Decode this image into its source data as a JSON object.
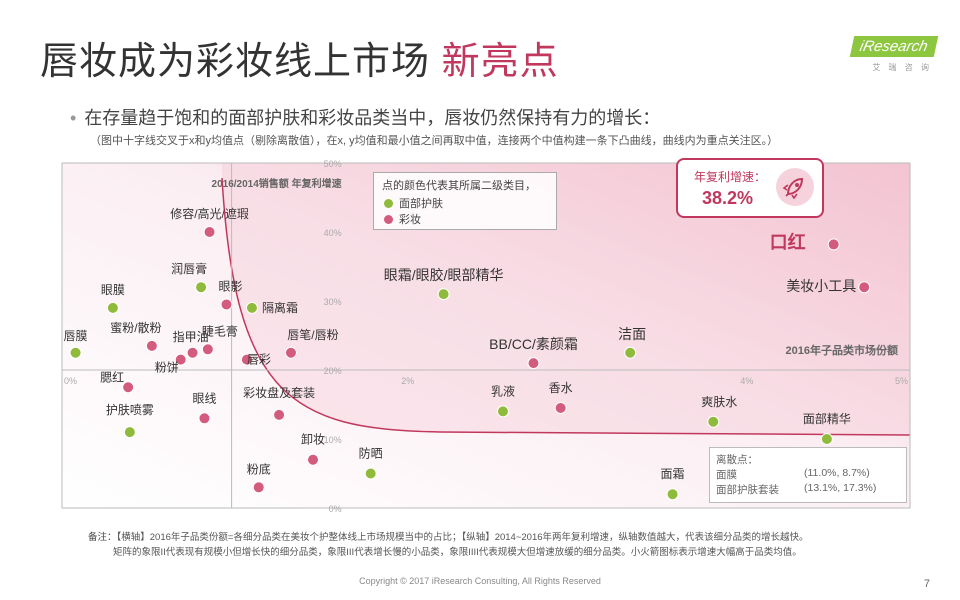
{
  "header": {
    "title_main": "唇妆成为彩妆线上市场",
    "title_highlight": "新亮点",
    "logo_text": "iResearch",
    "logo_sub": "艾 瑞 咨 询"
  },
  "bullet": {
    "text": "在存量趋于饱和的面部护肤和彩妆品类当中，唇妆仍然保持有力的增长：",
    "note": "（图中十字线交叉于x和y均值点（剔除离散值），在x, y均值和最小值之间再取中值，连接两个中值构建一条下凸曲线，曲线内为重点关注区。）"
  },
  "callout": {
    "label": "年复利增速：",
    "value": "38.2%"
  },
  "legend": {
    "title": "点的颜色代表其所属二级类目，",
    "items": [
      {
        "label": "面部护肤",
        "color": "#8fba3b"
      },
      {
        "label": "彩妆",
        "color": "#d35b7e"
      }
    ]
  },
  "outliers": {
    "title": "离散点：",
    "rows": [
      {
        "name": "面膜",
        "value": "(11.0%,   8.7%)"
      },
      {
        "name": "面部护肤套装",
        "value": "(13.1%, 17.3%)"
      }
    ]
  },
  "chart_data": {
    "type": "scatter",
    "xlabel": "2016年子品类市场份额",
    "ylabel": "2016/2014销售额 年复利增速",
    "xlim": [
      0,
      5
    ],
    "ylim": [
      0,
      50
    ],
    "x_ticks": [
      "0%",
      "2%",
      "4%",
      "5%"
    ],
    "y_ticks": [
      "0%",
      "10%",
      "20%",
      "30%",
      "40%",
      "50%"
    ],
    "x_mean": 1.0,
    "y_mean": 20,
    "colors": {
      "skincare": "#8fba3b",
      "makeup": "#d35b7e"
    },
    "points": [
      {
        "label": "修容/高光/遮瑕",
        "x": 0.87,
        "y": 40.0,
        "group": "makeup"
      },
      {
        "label": "润唇膏",
        "x": 0.82,
        "y": 32.0,
        "group": "skincare"
      },
      {
        "label": "眼影",
        "x": 0.97,
        "y": 29.5,
        "group": "makeup"
      },
      {
        "label": "隔离霜",
        "x": 1.12,
        "y": 29.0,
        "group": "skincare"
      },
      {
        "label": "眼膜",
        "x": 0.3,
        "y": 29.0,
        "group": "skincare"
      },
      {
        "label": "蜜粉/散粉",
        "x": 0.53,
        "y": 23.5,
        "group": "makeup"
      },
      {
        "label": "指甲油",
        "x": 0.77,
        "y": 22.5,
        "group": "makeup"
      },
      {
        "label": "睫毛膏",
        "x": 0.86,
        "y": 23.0,
        "group": "makeup"
      },
      {
        "label": "粉饼",
        "x": 0.7,
        "y": 21.5,
        "group": "makeup"
      },
      {
        "label": "唇膜",
        "x": 0.08,
        "y": 22.5,
        "group": "skincare"
      },
      {
        "label": "唇彩",
        "x": 1.09,
        "y": 21.5,
        "group": "makeup"
      },
      {
        "label": "唇笔/唇粉",
        "x": 1.35,
        "y": 22.5,
        "group": "makeup"
      },
      {
        "label": "腮红",
        "x": 0.39,
        "y": 17.5,
        "group": "makeup"
      },
      {
        "label": "眼线",
        "x": 0.84,
        "y": 13.0,
        "group": "makeup"
      },
      {
        "label": "护肤喷雾",
        "x": 0.4,
        "y": 11.0,
        "group": "skincare"
      },
      {
        "label": "彩妆盘及套装",
        "x": 1.28,
        "y": 13.5,
        "group": "makeup"
      },
      {
        "label": "卸妆",
        "x": 1.48,
        "y": 7.0,
        "group": "makeup"
      },
      {
        "label": "粉底",
        "x": 1.16,
        "y": 3.0,
        "group": "makeup"
      },
      {
        "label": "防晒",
        "x": 1.82,
        "y": 5.0,
        "group": "skincare"
      },
      {
        "label": "眼霜/眼胶/眼部精华",
        "x": 2.25,
        "y": 31.0,
        "group": "skincare"
      },
      {
        "label": "BB/CC/素颜霜",
        "x": 2.78,
        "y": 21.0,
        "group": "makeup"
      },
      {
        "label": "洁面",
        "x": 3.35,
        "y": 22.5,
        "group": "skincare"
      },
      {
        "label": "乳液",
        "x": 2.6,
        "y": 14.0,
        "group": "skincare"
      },
      {
        "label": "香水",
        "x": 2.94,
        "y": 14.5,
        "group": "makeup"
      },
      {
        "label": "口红",
        "x": 4.55,
        "y": 38.2,
        "group": "makeup"
      },
      {
        "label": "美妆小工具",
        "x": 4.73,
        "y": 32.0,
        "group": "makeup"
      },
      {
        "label": "爽肤水",
        "x": 3.84,
        "y": 12.5,
        "group": "skincare"
      },
      {
        "label": "面部精华",
        "x": 4.51,
        "y": 10.0,
        "group": "skincare"
      },
      {
        "label": "面霜",
        "x": 3.6,
        "y": 2.0,
        "group": "skincare"
      }
    ]
  },
  "footer": {
    "note_label": "备注：",
    "note_line1": "【横轴】2016年子品类份额=各细分品类在美妆个护整体线上市场规模当中的占比；【纵轴】2014~2016年两年复利增速，纵轴数值越大，代表该细分品类的增长越快。",
    "note_line2": "矩阵的象限II代表现有规模小但增长快的细分品类，象限III代表增长慢的小品类，象限IIII代表规模大但增速放缓的细分品类。小火箭图标表示增速大幅高于品类均值。",
    "copyright": "Copyright © 2017 iResearch Consulting, All Rights Reserved",
    "page": "7"
  }
}
